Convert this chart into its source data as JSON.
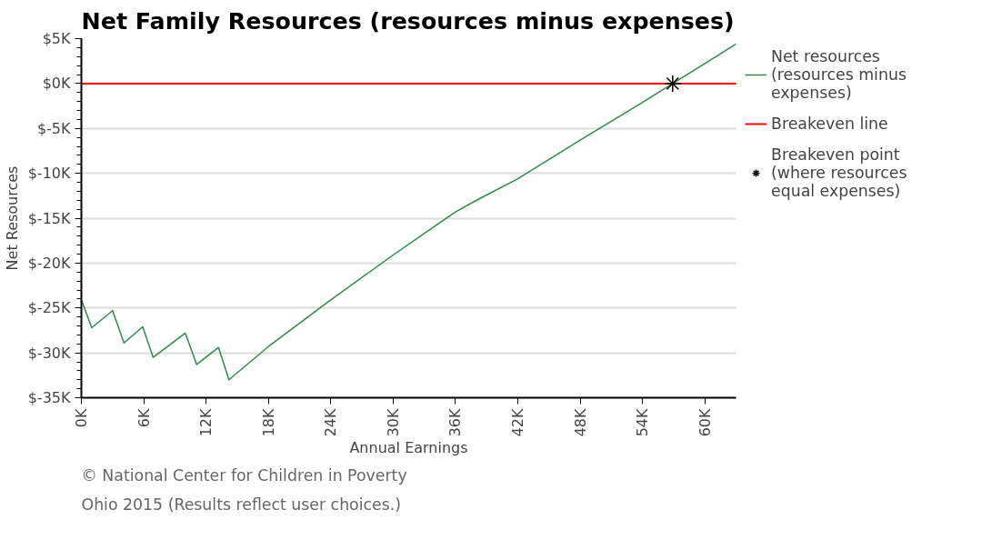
{
  "chart_data": {
    "type": "line",
    "title": "Net Family Resources (resources minus expenses)",
    "xlabel": "Annual Earnings",
    "ylabel": "Net Resources",
    "xlim": [
      0,
      63000
    ],
    "ylim": [
      -35000,
      5000
    ],
    "xticks": [
      {
        "value": 0,
        "label": "0K"
      },
      {
        "value": 6000,
        "label": "6K"
      },
      {
        "value": 12000,
        "label": "12K"
      },
      {
        "value": 18000,
        "label": "18K"
      },
      {
        "value": 24000,
        "label": "24K"
      },
      {
        "value": 30000,
        "label": "30K"
      },
      {
        "value": 36000,
        "label": "36K"
      },
      {
        "value": 42000,
        "label": "42K"
      },
      {
        "value": 48000,
        "label": "48K"
      },
      {
        "value": 54000,
        "label": "54K"
      },
      {
        "value": 60000,
        "label": "60K"
      }
    ],
    "yticks": [
      {
        "value": 5000,
        "label": "$5K"
      },
      {
        "value": 0,
        "label": "$0K"
      },
      {
        "value": -5000,
        "label": "$-5K"
      },
      {
        "value": -10000,
        "label": "$-10K"
      },
      {
        "value": -15000,
        "label": "$-15K"
      },
      {
        "value": -20000,
        "label": "$-20K"
      },
      {
        "value": -25000,
        "label": "$-25K"
      },
      {
        "value": -30000,
        "label": "$-30K"
      },
      {
        "value": -35000,
        "label": "$-35K"
      }
    ],
    "grid": "y",
    "legend": "right",
    "series": [
      {
        "name": "Net resources (resources minus expenses)",
        "color": "#2e8b4a",
        "x": [
          0,
          1000,
          3000,
          4100,
          5900,
          6900,
          10000,
          11100,
          13200,
          14200,
          18000,
          24000,
          30000,
          36000,
          38200,
          42000,
          48000,
          54000,
          56900,
          63000
        ],
        "values": [
          -24100,
          -27200,
          -25300,
          -28900,
          -27100,
          -30500,
          -27800,
          -31300,
          -29400,
          -33000,
          -29300,
          -24100,
          -19100,
          -14300,
          -12900,
          -10600,
          -6300,
          -2100,
          0,
          4400
        ]
      },
      {
        "name": "Breakeven point (where resources equal expenses)",
        "type": "scatter",
        "color": "#000000",
        "marker": "cross",
        "x": [
          56900
        ],
        "values": [
          0
        ]
      }
    ],
    "ref_lines": [
      {
        "axis": "y",
        "value": 0,
        "label": "Breakeven line",
        "color": "#ff0000"
      }
    ],
    "annotations": [
      "© National Center for Children in Poverty",
      "Ohio 2015 (Results reflect user choices.)"
    ]
  }
}
